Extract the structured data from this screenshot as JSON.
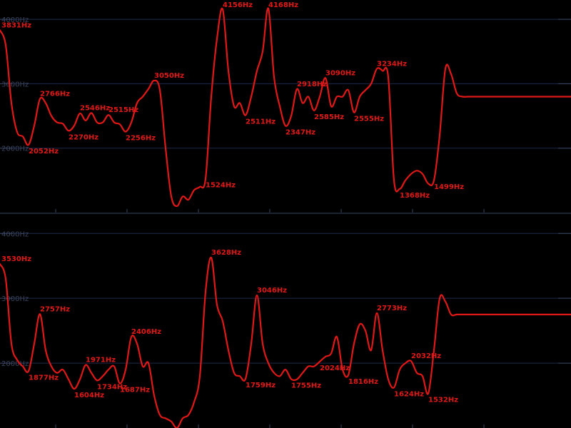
{
  "chart_data": [
    {
      "type": "line",
      "panel": "top",
      "ylim": [
        1000,
        4300
      ],
      "xlim": [
        0,
        100
      ],
      "y_ticks": [
        2000,
        3000,
        4000
      ],
      "tick_format": "{v}Hz",
      "series": [
        {
          "color": "#e01818",
          "x": [
            0,
            1,
            2,
            3,
            4,
            5,
            6,
            7,
            8,
            9,
            10,
            11,
            12,
            13,
            14,
            15,
            16,
            17,
            18,
            19,
            20,
            21,
            22,
            23,
            24,
            25,
            26,
            27,
            28,
            29,
            30,
            31,
            32,
            33,
            34,
            35,
            36,
            37,
            38,
            39,
            40,
            41,
            42,
            43,
            44,
            45,
            46,
            47,
            48,
            49,
            50,
            51,
            52,
            53,
            54,
            55,
            56,
            57,
            58,
            59,
            60,
            61,
            62,
            63,
            64,
            65,
            66,
            67,
            68,
            69,
            70,
            71,
            72,
            73,
            74,
            75,
            76,
            77,
            78,
            79,
            80,
            81,
            82,
            83,
            84,
            85,
            86,
            87,
            88,
            89,
            90,
            91,
            92,
            93,
            94,
            95,
            96,
            97,
            98,
            99,
            100
          ],
          "y": [
            3831,
            3600,
            2700,
            2250,
            2180,
            2052,
            2350,
            2766,
            2700,
            2500,
            2400,
            2380,
            2270,
            2350,
            2540,
            2430,
            2546,
            2400,
            2400,
            2515,
            2400,
            2370,
            2256,
            2400,
            2700,
            2800,
            2920,
            3050,
            2900,
            2000,
            1250,
            1100,
            1250,
            1200,
            1350,
            1400,
            1524,
            2800,
            3700,
            4156,
            3200,
            2650,
            2700,
            2511,
            2800,
            3200,
            3500,
            4168,
            3100,
            2650,
            2347,
            2500,
            2918,
            2700,
            2800,
            2585,
            2800,
            3090,
            2650,
            2800,
            2800,
            2900,
            2555,
            2800,
            2900,
            3000,
            3234,
            3200,
            3100,
            1500,
            1368,
            1500,
            1600,
            1650,
            1600,
            1450,
            1499,
            2200,
            3234,
            3150,
            2850,
            2800,
            2800,
            2800,
            2800,
            2800,
            2800,
            2800,
            2800,
            2800,
            2800,
            2800,
            2800,
            2800,
            2800,
            2800,
            2800,
            2800,
            2800,
            2800,
            2800
          ]
        }
      ],
      "annotations": [
        {
          "x": 0,
          "y": 3831,
          "text": "3831Hz",
          "pos": "above"
        },
        {
          "x": 5,
          "y": 2052,
          "text": "2052Hz",
          "pos": "below"
        },
        {
          "x": 7,
          "y": 2766,
          "text": "2766Hz",
          "pos": "above"
        },
        {
          "x": 12,
          "y": 2270,
          "text": "2270Hz",
          "pos": "below"
        },
        {
          "x": 14,
          "y": 2546,
          "text": "2546Hz",
          "pos": "above"
        },
        {
          "x": 19,
          "y": 2515,
          "text": "2515Hz",
          "pos": "above"
        },
        {
          "x": 22,
          "y": 2256,
          "text": "2256Hz",
          "pos": "below"
        },
        {
          "x": 27,
          "y": 3050,
          "text": "3050Hz",
          "pos": "above"
        },
        {
          "x": 36,
          "y": 1524,
          "text": "1524Hz",
          "pos": "below"
        },
        {
          "x": 39,
          "y": 4156,
          "text": "4156Hz",
          "pos": "above"
        },
        {
          "x": 43,
          "y": 2511,
          "text": "2511Hz",
          "pos": "below"
        },
        {
          "x": 47,
          "y": 4168,
          "text": "4168Hz",
          "pos": "above"
        },
        {
          "x": 50,
          "y": 2347,
          "text": "2347Hz",
          "pos": "below"
        },
        {
          "x": 52,
          "y": 2918,
          "text": "2918Hz",
          "pos": "above"
        },
        {
          "x": 55,
          "y": 2585,
          "text": "2585Hz",
          "pos": "below"
        },
        {
          "x": 57,
          "y": 3090,
          "text": "3090Hz",
          "pos": "above"
        },
        {
          "x": 62,
          "y": 2555,
          "text": "2555Hz",
          "pos": "below"
        },
        {
          "x": 66,
          "y": 3234,
          "text": "3234Hz",
          "pos": "above"
        },
        {
          "x": 70,
          "y": 1368,
          "text": "1368Hz",
          "pos": "below"
        },
        {
          "x": 76,
          "y": 1499,
          "text": "1499Hz",
          "pos": "below"
        }
      ]
    },
    {
      "type": "line",
      "panel": "bottom",
      "ylim": [
        1000,
        4300
      ],
      "xlim": [
        0,
        100
      ],
      "y_ticks": [
        2000,
        3000,
        4000
      ],
      "tick_format": "{v}Hz",
      "series": [
        {
          "color": "#e01818",
          "x": [
            0,
            1,
            2,
            3,
            4,
            5,
            6,
            7,
            8,
            9,
            10,
            11,
            12,
            13,
            14,
            15,
            16,
            17,
            18,
            19,
            20,
            21,
            22,
            23,
            24,
            25,
            26,
            27,
            28,
            29,
            30,
            31,
            32,
            33,
            34,
            35,
            36,
            37,
            38,
            39,
            40,
            41,
            42,
            43,
            44,
            45,
            46,
            47,
            48,
            49,
            50,
            51,
            52,
            53,
            54,
            55,
            56,
            57,
            58,
            59,
            60,
            61,
            62,
            63,
            64,
            65,
            66,
            67,
            68,
            69,
            70,
            71,
            72,
            73,
            74,
            75,
            76,
            77,
            78,
            79,
            80,
            81,
            82,
            83,
            84,
            85,
            86,
            87,
            88,
            89,
            90,
            91,
            92,
            93,
            94,
            95,
            96,
            97,
            98,
            99,
            100
          ],
          "y": [
            3530,
            3300,
            2300,
            2050,
            1950,
            1877,
            2300,
            2757,
            2200,
            1950,
            1850,
            1900,
            1750,
            1604,
            1750,
            1971,
            1850,
            1734,
            1800,
            1900,
            1950,
            1687,
            1900,
            2406,
            2300,
            1950,
            2000,
            1500,
            1200,
            1150,
            1100,
            1000,
            1150,
            1200,
            1400,
            1800,
            3100,
            3628,
            2900,
            2650,
            2200,
            1850,
            1800,
            1759,
            2300,
            3046,
            2300,
            2000,
            1850,
            1800,
            1900,
            1755,
            1750,
            1850,
            1950,
            1950,
            2024,
            2100,
            2150,
            2406,
            1900,
            1816,
            2300,
            2600,
            2500,
            2200,
            2773,
            2200,
            1750,
            1624,
            1900,
            2000,
            2032,
            1850,
            1800,
            1532,
            2200,
            3000,
            2950,
            2750,
            2750,
            2750,
            2750,
            2750,
            2750,
            2750,
            2750,
            2750,
            2750,
            2750,
            2750,
            2750,
            2750,
            2750,
            2750,
            2750,
            2750,
            2750,
            2750,
            2750,
            2750
          ]
        }
      ],
      "annotations": [
        {
          "x": 0,
          "y": 3530,
          "text": "3530Hz",
          "pos": "above"
        },
        {
          "x": 5,
          "y": 1877,
          "text": "1877Hz",
          "pos": "below"
        },
        {
          "x": 7,
          "y": 2757,
          "text": "2757Hz",
          "pos": "above"
        },
        {
          "x": 13,
          "y": 1604,
          "text": "1604Hz",
          "pos": "below"
        },
        {
          "x": 15,
          "y": 1971,
          "text": "1971Hz",
          "pos": "above"
        },
        {
          "x": 17,
          "y": 1734,
          "text": "1734Hz",
          "pos": "below"
        },
        {
          "x": 21,
          "y": 1687,
          "text": "1687Hz",
          "pos": "below"
        },
        {
          "x": 23,
          "y": 2406,
          "text": "2406Hz",
          "pos": "above"
        },
        {
          "x": 37,
          "y": 3628,
          "text": "3628Hz",
          "pos": "above"
        },
        {
          "x": 43,
          "y": 1759,
          "text": "1759Hz",
          "pos": "below"
        },
        {
          "x": 45,
          "y": 3046,
          "text": "3046Hz",
          "pos": "above"
        },
        {
          "x": 51,
          "y": 1755,
          "text": "1755Hz",
          "pos": "below"
        },
        {
          "x": 56,
          "y": 2024,
          "text": "2024Hz",
          "pos": "below"
        },
        {
          "x": 61,
          "y": 1816,
          "text": "1816Hz",
          "pos": "below"
        },
        {
          "x": 66,
          "y": 2773,
          "text": "2773Hz",
          "pos": "above"
        },
        {
          "x": 69,
          "y": 1624,
          "text": "1624Hz",
          "pos": "below"
        },
        {
          "x": 72,
          "y": 2032,
          "text": "2032Hz",
          "pos": "above"
        },
        {
          "x": 75,
          "y": 1532,
          "text": "1532Hz",
          "pos": "below"
        }
      ]
    }
  ],
  "colors": {
    "background": "#000000",
    "curve": "#e01818",
    "grid": "#1e2a4a",
    "tick_text": "#3a4560"
  }
}
